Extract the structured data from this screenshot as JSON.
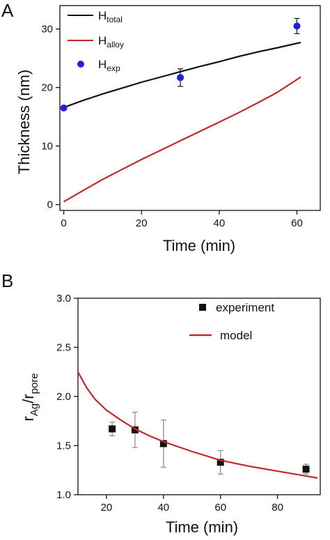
{
  "chart_data": [
    {
      "panel_label": "A",
      "type": "line",
      "xlabel": "Time (min)",
      "ylabel": "Thickness (nm)",
      "xlim": [
        -1,
        66
      ],
      "ylim": [
        -1,
        34
      ],
      "xticks": [
        0,
        20,
        40,
        60
      ],
      "yticks": [
        0,
        10,
        20,
        30
      ],
      "grid": false,
      "legend_position": "top-left",
      "legend": [
        {
          "main": "H",
          "sub": "total"
        },
        {
          "main": "H",
          "sub": "alloy"
        },
        {
          "main": "H",
          "sub": "exp"
        }
      ],
      "series": [
        {
          "type": "line",
          "color": "#111111",
          "x": [
            0,
            5,
            10,
            15,
            20,
            25,
            30,
            35,
            40,
            45,
            50,
            55,
            61
          ],
          "y": [
            16.6,
            17.8,
            18.9,
            19.9,
            20.9,
            21.8,
            22.7,
            23.6,
            24.4,
            25.3,
            26.1,
            26.8,
            27.7
          ]
        },
        {
          "type": "line",
          "color": "#c0282d",
          "x": [
            0,
            5,
            10,
            15,
            20,
            25,
            30,
            35,
            40,
            45,
            50,
            55,
            61
          ],
          "y": [
            0.5,
            2.4,
            4.3,
            6.0,
            7.7,
            9.3,
            10.9,
            12.5,
            14.1,
            15.7,
            17.4,
            19.2,
            21.8
          ]
        },
        {
          "type": "scatter",
          "color": "#2020d8",
          "x": [
            0,
            30,
            60
          ],
          "y": [
            16.5,
            21.7,
            30.5
          ],
          "err": [
            0,
            1.5,
            1.3
          ]
        }
      ]
    },
    {
      "panel_label": "B",
      "type": "line",
      "xlabel": "Time (min)",
      "ylabel": {
        "main": "r",
        "sub1": "Ag",
        "sep": "/r",
        "sub2": "pore"
      },
      "xlim": [
        10,
        95
      ],
      "ylim": [
        1.0,
        3.0
      ],
      "xticks": [
        20,
        40,
        60,
        80
      ],
      "yticks": [
        1.0,
        1.5,
        2.0,
        2.5,
        3.0
      ],
      "ytick_labels": [
        "1.0",
        "1.5",
        "2.0",
        "2.5",
        "3.0"
      ],
      "grid": false,
      "legend_position": "top-right",
      "legend": [
        "experiment",
        "model"
      ],
      "series": [
        {
          "name": "experiment",
          "type": "scatter",
          "marker": "square",
          "color": "#111111",
          "x": [
            22,
            30,
            40,
            60,
            90
          ],
          "y": [
            1.67,
            1.66,
            1.52,
            1.33,
            1.26
          ],
          "err": [
            0.07,
            0.18,
            0.24,
            0.12,
            0.05
          ]
        },
        {
          "name": "model",
          "type": "line",
          "color": "#c0282d",
          "x": [
            10,
            13,
            16,
            20,
            25,
            30,
            35,
            40,
            50,
            60,
            70,
            80,
            90,
            94
          ],
          "y": [
            2.25,
            2.09,
            1.97,
            1.86,
            1.76,
            1.67,
            1.6,
            1.54,
            1.44,
            1.35,
            1.29,
            1.24,
            1.19,
            1.17
          ]
        }
      ]
    }
  ]
}
